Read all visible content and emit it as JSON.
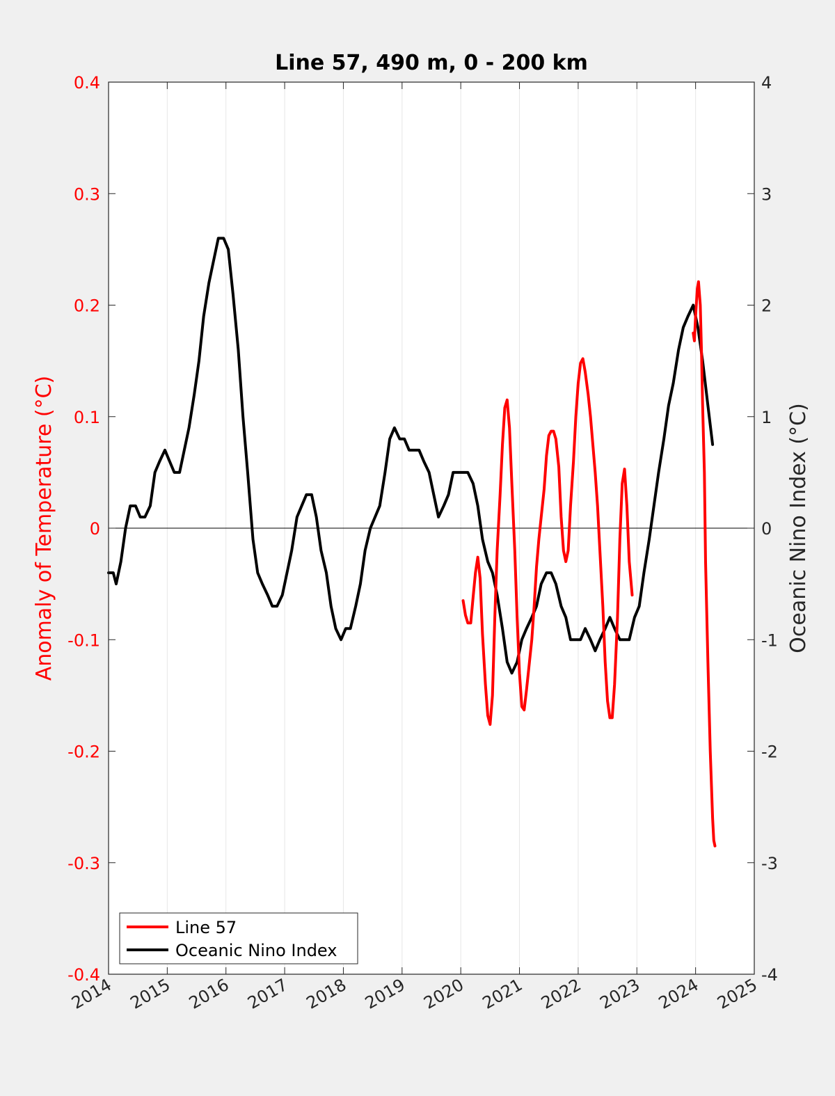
{
  "chart_data": {
    "type": "line",
    "title": "Line 57, 490 m, 0 - 200 km",
    "xlabel": "",
    "ylabel_left": "Anomaly of Temperature (°C)",
    "ylabel_right": "Oceanic Nino Index (°C)",
    "xlim": [
      2014,
      2025
    ],
    "ylim_left": [
      -0.4,
      0.4
    ],
    "ylim_right": [
      -4,
      4
    ],
    "x_ticks": [
      "2014",
      "2015",
      "2016",
      "2017",
      "2018",
      "2019",
      "2020",
      "2021",
      "2022",
      "2023",
      "2024",
      "2025"
    ],
    "y_ticks_left": [
      "-0.4",
      "-0.3",
      "-0.2",
      "-0.1",
      "0",
      "0.1",
      "0.2",
      "0.3",
      "0.4"
    ],
    "y_ticks_right": [
      "-4",
      "-3",
      "-2",
      "-1",
      "0",
      "1",
      "2",
      "3",
      "4"
    ],
    "grid": "vertical",
    "zero_line": true,
    "legend_position": "bottom-left",
    "colors": {
      "line57": "#ff0000",
      "oni": "#000000",
      "left_axis": "#ff0000",
      "right_axis": "#262626"
    },
    "series": [
      {
        "name": "Line 57",
        "axis": "left",
        "color": "#ff0000",
        "segments": [
          [
            [
              2020.04,
              -0.065
            ],
            [
              2020.08,
              -0.078
            ],
            [
              2020.12,
              -0.085
            ],
            [
              2020.17,
              -0.085
            ],
            [
              2020.21,
              -0.062
            ],
            [
              2020.25,
              -0.04
            ],
            [
              2020.29,
              -0.026
            ],
            [
              2020.33,
              -0.045
            ],
            [
              2020.37,
              -0.095
            ],
            [
              2020.42,
              -0.14
            ],
            [
              2020.46,
              -0.168
            ],
            [
              2020.5,
              -0.176
            ],
            [
              2020.54,
              -0.15
            ],
            [
              2020.58,
              -0.08
            ],
            [
              2020.62,
              -0.02
            ],
            [
              2020.67,
              0.03
            ],
            [
              2020.71,
              0.075
            ],
            [
              2020.75,
              0.108
            ],
            [
              2020.79,
              0.115
            ],
            [
              2020.83,
              0.09
            ],
            [
              2020.87,
              0.04
            ],
            [
              2020.92,
              -0.02
            ],
            [
              2020.96,
              -0.08
            ],
            [
              2021.0,
              -0.13
            ],
            [
              2021.04,
              -0.16
            ],
            [
              2021.08,
              -0.163
            ],
            [
              2021.12,
              -0.145
            ],
            [
              2021.17,
              -0.12
            ],
            [
              2021.21,
              -0.1
            ],
            [
              2021.25,
              -0.07
            ],
            [
              2021.29,
              -0.035
            ],
            [
              2021.33,
              -0.01
            ],
            [
              2021.37,
              0.01
            ],
            [
              2021.42,
              0.035
            ],
            [
              2021.46,
              0.065
            ],
            [
              2021.5,
              0.083
            ],
            [
              2021.54,
              0.087
            ],
            [
              2021.58,
              0.087
            ],
            [
              2021.62,
              0.08
            ],
            [
              2021.67,
              0.055
            ],
            [
              2021.71,
              0.01
            ],
            [
              2021.75,
              -0.02
            ],
            [
              2021.79,
              -0.03
            ],
            [
              2021.83,
              -0.02
            ],
            [
              2021.87,
              0.02
            ],
            [
              2021.92,
              0.06
            ],
            [
              2021.96,
              0.1
            ],
            [
              2022.0,
              0.13
            ],
            [
              2022.04,
              0.148
            ],
            [
              2022.08,
              0.152
            ],
            [
              2022.12,
              0.14
            ],
            [
              2022.17,
              0.12
            ],
            [
              2022.21,
              0.1
            ],
            [
              2022.25,
              0.075
            ],
            [
              2022.29,
              0.05
            ],
            [
              2022.33,
              0.02
            ],
            [
              2022.37,
              -0.02
            ],
            [
              2022.42,
              -0.07
            ],
            [
              2022.46,
              -0.12
            ],
            [
              2022.5,
              -0.155
            ],
            [
              2022.54,
              -0.17
            ],
            [
              2022.58,
              -0.17
            ],
            [
              2022.62,
              -0.14
            ],
            [
              2022.67,
              -0.08
            ],
            [
              2022.71,
              -0.01
            ],
            [
              2022.75,
              0.04
            ],
            [
              2022.79,
              0.053
            ],
            [
              2022.83,
              0.02
            ],
            [
              2022.87,
              -0.03
            ],
            [
              2022.92,
              -0.06
            ]
          ],
          [
            [
              2023.96,
              0.175
            ],
            [
              2023.98,
              0.168
            ],
            [
              2024.0,
              0.19
            ],
            [
              2024.03,
              0.215
            ],
            [
              2024.05,
              0.221
            ],
            [
              2024.08,
              0.2
            ],
            [
              2024.1,
              0.16
            ],
            [
              2024.12,
              0.11
            ],
            [
              2024.15,
              0.05
            ],
            [
              2024.17,
              -0.03
            ],
            [
              2024.21,
              -0.12
            ],
            [
              2024.25,
              -0.2
            ],
            [
              2024.29,
              -0.26
            ],
            [
              2024.31,
              -0.28
            ],
            [
              2024.33,
              -0.285
            ]
          ]
        ]
      },
      {
        "name": "Oceanic Nino Index",
        "axis": "right",
        "color": "#000000",
        "segments": [
          [
            [
              2014.0,
              -0.4
            ],
            [
              2014.04,
              -0.4
            ],
            [
              2014.08,
              -0.4
            ],
            [
              2014.13,
              -0.5
            ],
            [
              2014.21,
              -0.3
            ],
            [
              2014.29,
              0.0
            ],
            [
              2014.37,
              0.2
            ],
            [
              2014.46,
              0.2
            ],
            [
              2014.54,
              0.1
            ],
            [
              2014.62,
              0.1
            ],
            [
              2014.71,
              0.2
            ],
            [
              2014.79,
              0.5
            ],
            [
              2014.87,
              0.6
            ],
            [
              2014.96,
              0.7
            ],
            [
              2015.04,
              0.6
            ],
            [
              2015.12,
              0.5
            ],
            [
              2015.21,
              0.5
            ],
            [
              2015.29,
              0.7
            ],
            [
              2015.37,
              0.9
            ],
            [
              2015.46,
              1.2
            ],
            [
              2015.54,
              1.5
            ],
            [
              2015.62,
              1.9
            ],
            [
              2015.71,
              2.2
            ],
            [
              2015.79,
              2.4
            ],
            [
              2015.87,
              2.6
            ],
            [
              2015.96,
              2.6
            ],
            [
              2016.04,
              2.5
            ],
            [
              2016.12,
              2.1
            ],
            [
              2016.21,
              1.6
            ],
            [
              2016.29,
              1.0
            ],
            [
              2016.37,
              0.5
            ],
            [
              2016.46,
              -0.1
            ],
            [
              2016.54,
              -0.4
            ],
            [
              2016.62,
              -0.5
            ],
            [
              2016.71,
              -0.6
            ],
            [
              2016.79,
              -0.7
            ],
            [
              2016.87,
              -0.7
            ],
            [
              2016.96,
              -0.6
            ],
            [
              2017.04,
              -0.4
            ],
            [
              2017.12,
              -0.2
            ],
            [
              2017.21,
              0.1
            ],
            [
              2017.29,
              0.2
            ],
            [
              2017.37,
              0.3
            ],
            [
              2017.46,
              0.3
            ],
            [
              2017.54,
              0.1
            ],
            [
              2017.62,
              -0.2
            ],
            [
              2017.71,
              -0.4
            ],
            [
              2017.79,
              -0.7
            ],
            [
              2017.87,
              -0.9
            ],
            [
              2017.96,
              -1.0
            ],
            [
              2018.04,
              -0.9
            ],
            [
              2018.12,
              -0.9
            ],
            [
              2018.21,
              -0.7
            ],
            [
              2018.29,
              -0.5
            ],
            [
              2018.37,
              -0.2
            ],
            [
              2018.46,
              0.0
            ],
            [
              2018.54,
              0.1
            ],
            [
              2018.62,
              0.2
            ],
            [
              2018.71,
              0.5
            ],
            [
              2018.79,
              0.8
            ],
            [
              2018.87,
              0.9
            ],
            [
              2018.96,
              0.8
            ],
            [
              2019.04,
              0.8
            ],
            [
              2019.12,
              0.7
            ],
            [
              2019.21,
              0.7
            ],
            [
              2019.29,
              0.7
            ],
            [
              2019.37,
              0.6
            ],
            [
              2019.46,
              0.5
            ],
            [
              2019.54,
              0.3
            ],
            [
              2019.62,
              0.1
            ],
            [
              2019.71,
              0.2
            ],
            [
              2019.79,
              0.3
            ],
            [
              2019.87,
              0.5
            ],
            [
              2019.96,
              0.5
            ],
            [
              2020.04,
              0.5
            ],
            [
              2020.12,
              0.5
            ],
            [
              2020.21,
              0.4
            ],
            [
              2020.29,
              0.2
            ],
            [
              2020.37,
              -0.1
            ],
            [
              2020.46,
              -0.3
            ],
            [
              2020.54,
              -0.4
            ],
            [
              2020.62,
              -0.6
            ],
            [
              2020.71,
              -0.9
            ],
            [
              2020.79,
              -1.2
            ],
            [
              2020.87,
              -1.3
            ],
            [
              2020.96,
              -1.2
            ],
            [
              2021.04,
              -1.0
            ],
            [
              2021.12,
              -0.9
            ],
            [
              2021.21,
              -0.8
            ],
            [
              2021.29,
              -0.7
            ],
            [
              2021.37,
              -0.5
            ],
            [
              2021.46,
              -0.4
            ],
            [
              2021.54,
              -0.4
            ],
            [
              2021.62,
              -0.5
            ],
            [
              2021.71,
              -0.7
            ],
            [
              2021.79,
              -0.8
            ],
            [
              2021.87,
              -1.0
            ],
            [
              2021.96,
              -1.0
            ],
            [
              2022.04,
              -1.0
            ],
            [
              2022.12,
              -0.9
            ],
            [
              2022.21,
              -1.0
            ],
            [
              2022.29,
              -1.1
            ],
            [
              2022.37,
              -1.0
            ],
            [
              2022.46,
              -0.9
            ],
            [
              2022.54,
              -0.8
            ],
            [
              2022.62,
              -0.9
            ],
            [
              2022.71,
              -1.0
            ],
            [
              2022.79,
              -1.0
            ],
            [
              2022.87,
              -1.0
            ],
            [
              2022.96,
              -0.8
            ],
            [
              2023.04,
              -0.7
            ],
            [
              2023.12,
              -0.4
            ],
            [
              2023.21,
              -0.1
            ],
            [
              2023.29,
              0.2
            ],
            [
              2023.37,
              0.5
            ],
            [
              2023.46,
              0.8
            ],
            [
              2023.54,
              1.1
            ],
            [
              2023.62,
              1.3
            ],
            [
              2023.71,
              1.6
            ],
            [
              2023.79,
              1.8
            ],
            [
              2023.87,
              1.9
            ],
            [
              2023.96,
              2.0
            ],
            [
              2024.04,
              1.8
            ],
            [
              2024.12,
              1.5
            ],
            [
              2024.21,
              1.1
            ],
            [
              2024.29,
              0.75
            ]
          ]
        ]
      }
    ]
  }
}
